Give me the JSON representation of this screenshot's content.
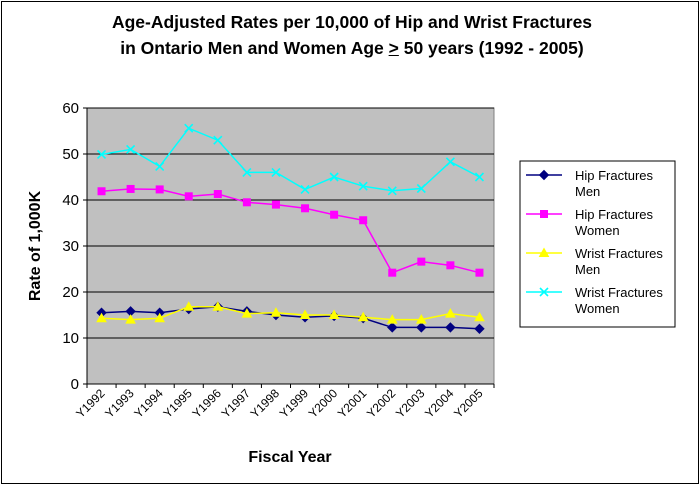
{
  "chart_data": {
    "type": "line",
    "title_line1": "Age-Adjusted Rates per 10,000 of Hip and Wrist Fractures",
    "title_line2_pre": "in Ontario Men and Women Age ",
    "title_line2_ge": ">",
    "title_line2_post": " 50 years (1992 - 2005)",
    "xlabel": "Fiscal Year",
    "ylabel": "Rate of 1,000K",
    "ylim": [
      0,
      60
    ],
    "yticks": [
      "0",
      "10",
      "20",
      "30",
      "40",
      "50",
      "60"
    ],
    "grid": "horizontal",
    "legend_position": "right",
    "plot_background": "#c0c0c0",
    "categories": [
      "Y1992",
      "Y1993",
      "Y1994",
      "Y1995",
      "Y1996",
      "Y1997",
      "Y1998",
      "Y1999",
      "Y2000",
      "Y2001",
      "Y2002",
      "Y2003",
      "Y2004",
      "Y2005"
    ],
    "series": [
      {
        "legend_line1": "Hip Fractures",
        "legend_line2": "Men",
        "marker": "diamond",
        "color": "#000080",
        "values": [
          15.5,
          15.8,
          15.5,
          16.3,
          16.8,
          15.8,
          15.0,
          14.5,
          14.8,
          14.3,
          12.3,
          12.3,
          12.3,
          12.0
        ]
      },
      {
        "legend_line1": "Hip Fractures",
        "legend_line2": "Women",
        "marker": "square",
        "color": "#ff00ff",
        "values": [
          41.9,
          42.4,
          42.3,
          40.8,
          41.3,
          39.5,
          39.0,
          38.2,
          36.8,
          35.6,
          24.2,
          26.6,
          25.8,
          24.2
        ]
      },
      {
        "legend_line1": "Wrist Fractures",
        "legend_line2": "Men",
        "marker": "triangle",
        "color": "#ffff00",
        "values": [
          14.3,
          14.0,
          14.3,
          16.8,
          16.8,
          15.3,
          15.5,
          15.0,
          15.0,
          14.5,
          14.0,
          14.0,
          15.3,
          14.5
        ]
      },
      {
        "legend_line1": "Wrist Fractures",
        "legend_line2": "Women",
        "marker": "x",
        "color": "#00ffff",
        "values": [
          49.9,
          51.0,
          47.3,
          55.6,
          53.0,
          46.0,
          46.0,
          42.3,
          45.0,
          43.0,
          42.0,
          42.5,
          48.3,
          45.0
        ]
      }
    ]
  }
}
